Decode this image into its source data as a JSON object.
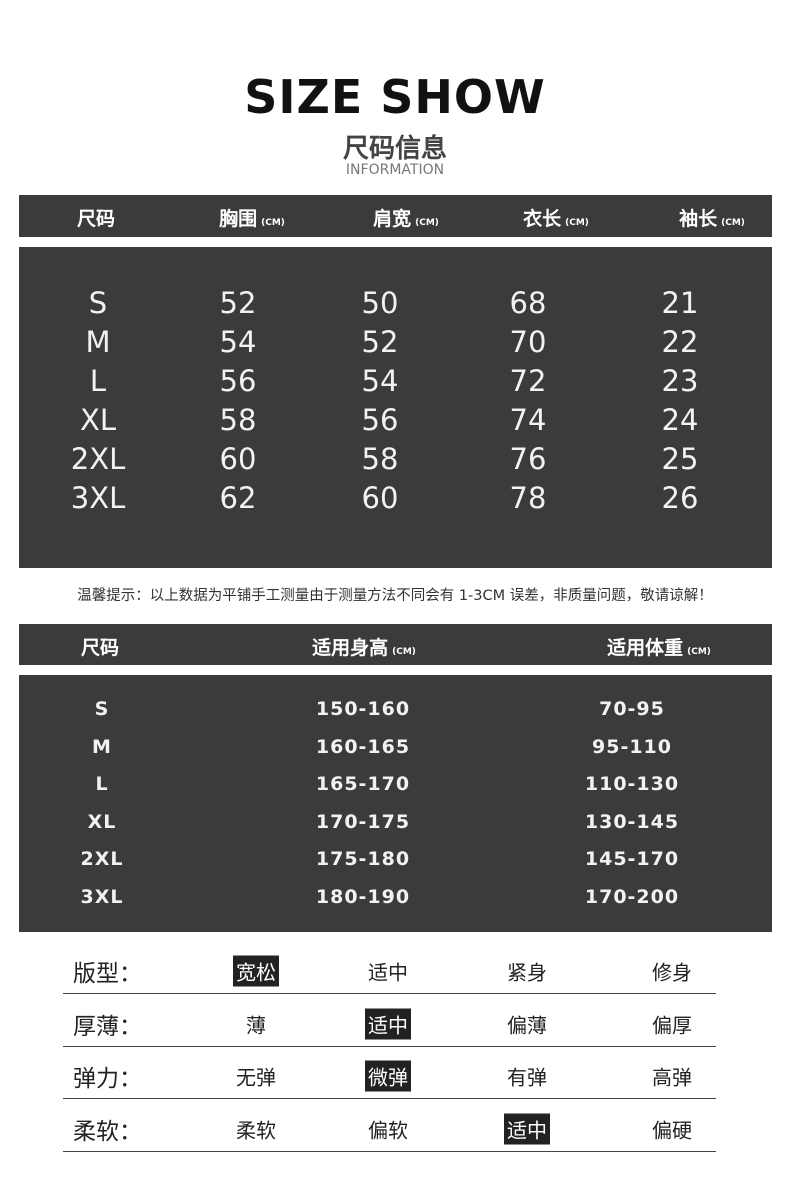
{
  "header": {
    "title": "SIZE SHOW",
    "subtitle": "尺码信息",
    "info": "INFORMATION"
  },
  "table1": {
    "columns": [
      {
        "label": "尺码",
        "unit": ""
      },
      {
        "label": "胸围",
        "unit": "(CM)"
      },
      {
        "label": "肩宽",
        "unit": "(CM)"
      },
      {
        "label": "衣长",
        "unit": "(CM)"
      },
      {
        "label": "袖长",
        "unit": "(CM)"
      }
    ],
    "rows": [
      [
        "S",
        "52",
        "50",
        "68",
        "21"
      ],
      [
        "M",
        "54",
        "52",
        "70",
        "22"
      ],
      [
        "L",
        "56",
        "54",
        "72",
        "23"
      ],
      [
        "XL",
        "58",
        "56",
        "74",
        "24"
      ],
      [
        "2XL",
        "60",
        "58",
        "76",
        "25"
      ],
      [
        "3XL",
        "62",
        "60",
        "78",
        "26"
      ]
    ]
  },
  "note": "温馨提示：以上数据为平铺手工测量由于测量方法不同会有 1-3CM 误差，非质量问题，敬请谅解！",
  "table2": {
    "columns": [
      {
        "label": "尺码",
        "unit": ""
      },
      {
        "label": "适用身高",
        "unit": "(CM)"
      },
      {
        "label": "适用体重",
        "unit": "(CM)"
      }
    ],
    "rows": [
      [
        "S",
        "150-160",
        "70-95"
      ],
      [
        "M",
        "160-165",
        "95-110"
      ],
      [
        "L",
        "165-170",
        "110-130"
      ],
      [
        "XL",
        "170-175",
        "130-145"
      ],
      [
        "2XL",
        "175-180",
        "145-170"
      ],
      [
        "3XL",
        "180-190",
        "170-200"
      ]
    ]
  },
  "attributes": [
    {
      "label": "版型：",
      "options": [
        "宽松",
        "适中",
        "紧身",
        "修身"
      ],
      "selected": 0
    },
    {
      "label": "厚薄：",
      "options": [
        "薄",
        "适中",
        "偏薄",
        "偏厚"
      ],
      "selected": 1
    },
    {
      "label": "弹力：",
      "options": [
        "无弹",
        "微弹",
        "有弹",
        "高弹"
      ],
      "selected": 1
    },
    {
      "label": "柔软：",
      "options": [
        "柔软",
        "偏软",
        "适中",
        "偏硬"
      ],
      "selected": 2
    }
  ],
  "colors": {
    "table_bg": "#3b3b3b",
    "selected_bg": "#222222"
  }
}
